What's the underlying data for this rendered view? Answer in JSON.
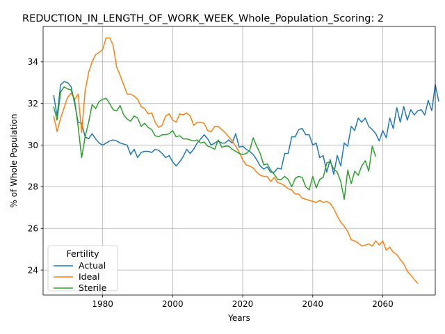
{
  "chart_data": {
    "type": "line",
    "title": "REDUCTION_IN_LENGTH_OF_WORK_WEEK_Whole_Population_Scoring: 2",
    "xlabel": "Years",
    "ylabel": "% of Whole Population",
    "xlim": [
      1963,
      2075
    ],
    "ylim": [
      22.8,
      35.7
    ],
    "xticks": [
      1980,
      2000,
      2020,
      2040,
      2060
    ],
    "yticks": [
      24,
      26,
      28,
      30,
      32,
      34
    ],
    "grid": true,
    "legend": {
      "title": "Fertility",
      "position": "lower-left"
    },
    "x_start": 1966,
    "series": [
      {
        "name": "Actual",
        "color": "#1f77b4",
        "values": [
          32.4,
          31.4,
          32.9,
          33.05,
          33.0,
          32.8,
          32.0,
          31.1,
          31.05,
          30.4,
          30.3,
          30.55,
          30.3,
          30.1,
          30.0,
          30.1,
          30.2,
          30.25,
          30.2,
          30.1,
          30.05,
          30.0,
          29.55,
          29.8,
          29.4,
          29.65,
          29.7,
          29.7,
          29.65,
          29.8,
          29.75,
          29.6,
          29.4,
          29.5,
          29.2,
          29.0,
          29.2,
          29.45,
          29.8,
          29.6,
          29.8,
          30.1,
          30.3,
          30.5,
          30.3,
          30.0,
          30.1,
          30.2,
          30.1,
          30.1,
          30.25,
          30.1,
          30.55,
          29.9,
          29.95,
          29.8,
          29.7,
          29.55,
          29.3,
          29.0,
          28.85,
          28.95,
          28.7,
          28.7,
          28.9,
          28.85,
          29.6,
          29.6,
          30.4,
          30.4,
          30.75,
          30.8,
          30.5,
          30.5,
          30.0,
          30.1,
          29.4,
          29.5,
          28.7,
          29.3,
          28.6,
          29.5,
          29.0,
          30.1,
          29.95,
          30.9,
          30.7,
          31.3,
          31.1,
          31.3,
          30.9,
          30.75,
          30.55,
          30.2,
          30.7,
          30.35,
          31.3,
          30.8,
          31.8,
          31.1,
          31.85,
          31.2,
          31.7,
          31.45,
          31.65,
          31.7,
          31.45,
          32.15,
          31.65,
          32.9,
          32.1
        ]
      },
      {
        "name": "Ideal",
        "color": "#ff7f0e",
        "values": [
          31.4,
          30.65,
          31.3,
          31.8,
          32.3,
          32.5,
          32.2,
          32.45,
          30.6,
          32.6,
          33.5,
          34.0,
          34.35,
          34.45,
          34.6,
          35.15,
          35.15,
          34.8,
          33.75,
          33.35,
          32.9,
          32.45,
          32.45,
          32.35,
          32.2,
          31.85,
          31.75,
          31.5,
          31.55,
          31.1,
          30.85,
          30.95,
          31.4,
          31.5,
          31.2,
          31.1,
          31.5,
          31.45,
          31.55,
          31.4,
          30.95,
          31.1,
          31.1,
          31.05,
          30.7,
          30.65,
          30.9,
          30.9,
          30.75,
          30.6,
          30.4,
          30.2,
          29.95,
          29.65,
          29.3,
          29.05,
          29.0,
          28.9,
          28.7,
          28.55,
          28.5,
          28.5,
          28.25,
          28.45,
          28.2,
          28.15,
          28.05,
          27.9,
          27.85,
          27.65,
          27.65,
          27.45,
          27.4,
          27.35,
          27.3,
          27.25,
          27.35,
          27.25,
          27.3,
          27.2,
          26.95,
          26.6,
          26.3,
          26.1,
          25.85,
          25.45,
          25.4,
          25.3,
          25.15,
          25.2,
          25.25,
          25.15,
          25.4,
          25.2,
          25.4,
          24.95,
          25.1,
          24.85,
          24.75,
          24.5,
          24.3,
          23.95,
          23.75,
          23.55,
          23.35
        ]
      },
      {
        "name": "Sterile",
        "color": "#2ca02c",
        "values": [
          31.85,
          31.2,
          32.55,
          32.8,
          32.7,
          32.65,
          32.15,
          30.9,
          29.4,
          30.4,
          31.1,
          31.95,
          31.75,
          32.1,
          32.2,
          32.25,
          32.0,
          31.7,
          31.65,
          31.9,
          31.45,
          31.25,
          31.15,
          31.4,
          31.3,
          30.9,
          31.05,
          30.85,
          30.75,
          30.45,
          30.4,
          30.5,
          30.5,
          30.55,
          30.7,
          30.4,
          30.45,
          30.3,
          30.3,
          30.25,
          30.2,
          30.25,
          30.1,
          30.15,
          29.95,
          29.9,
          29.8,
          30.25,
          29.9,
          29.95,
          29.95,
          29.8,
          29.7,
          29.6,
          29.55,
          29.6,
          29.75,
          30.35,
          29.95,
          29.6,
          29.05,
          29.1,
          28.8,
          28.6,
          28.35,
          28.35,
          28.5,
          28.35,
          28.0,
          28.4,
          28.5,
          28.45,
          28.0,
          27.85,
          28.5,
          27.95,
          28.35,
          28.45,
          29.15,
          29.2,
          28.85,
          28.7,
          28.25,
          27.4,
          28.8,
          28.15,
          28.75,
          28.55,
          29.0,
          29.25,
          28.75,
          29.95,
          29.45
        ]
      }
    ]
  }
}
